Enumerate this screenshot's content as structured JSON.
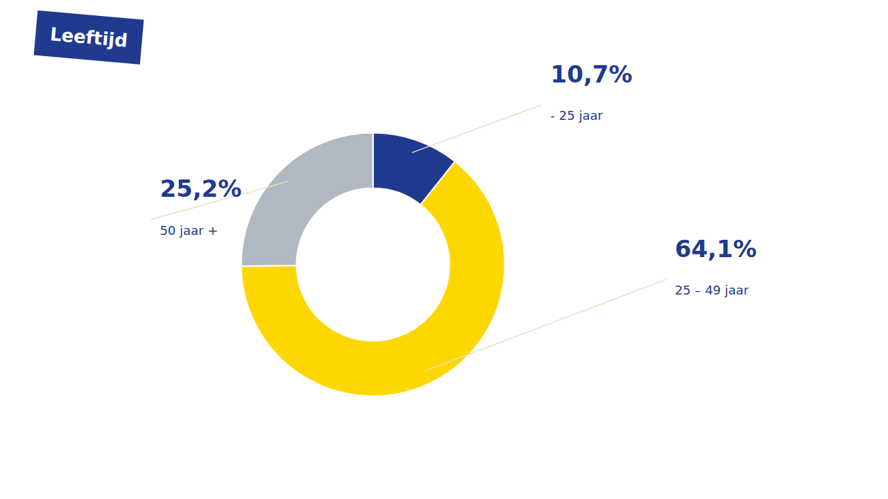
{
  "chart_data": {
    "type": "pie",
    "categories": [
      "- 25 jaar",
      "25 – 49 jaar",
      "50 jaar +"
    ],
    "values": [
      10.7,
      64.1,
      25.2
    ],
    "value_labels": [
      "10,7%",
      "64,1%",
      "25,2%"
    ],
    "colors": [
      "#1F3A8F",
      "#FFD700",
      "#B0B8C1"
    ],
    "annotations": [
      "Leeftijd"
    ]
  }
}
